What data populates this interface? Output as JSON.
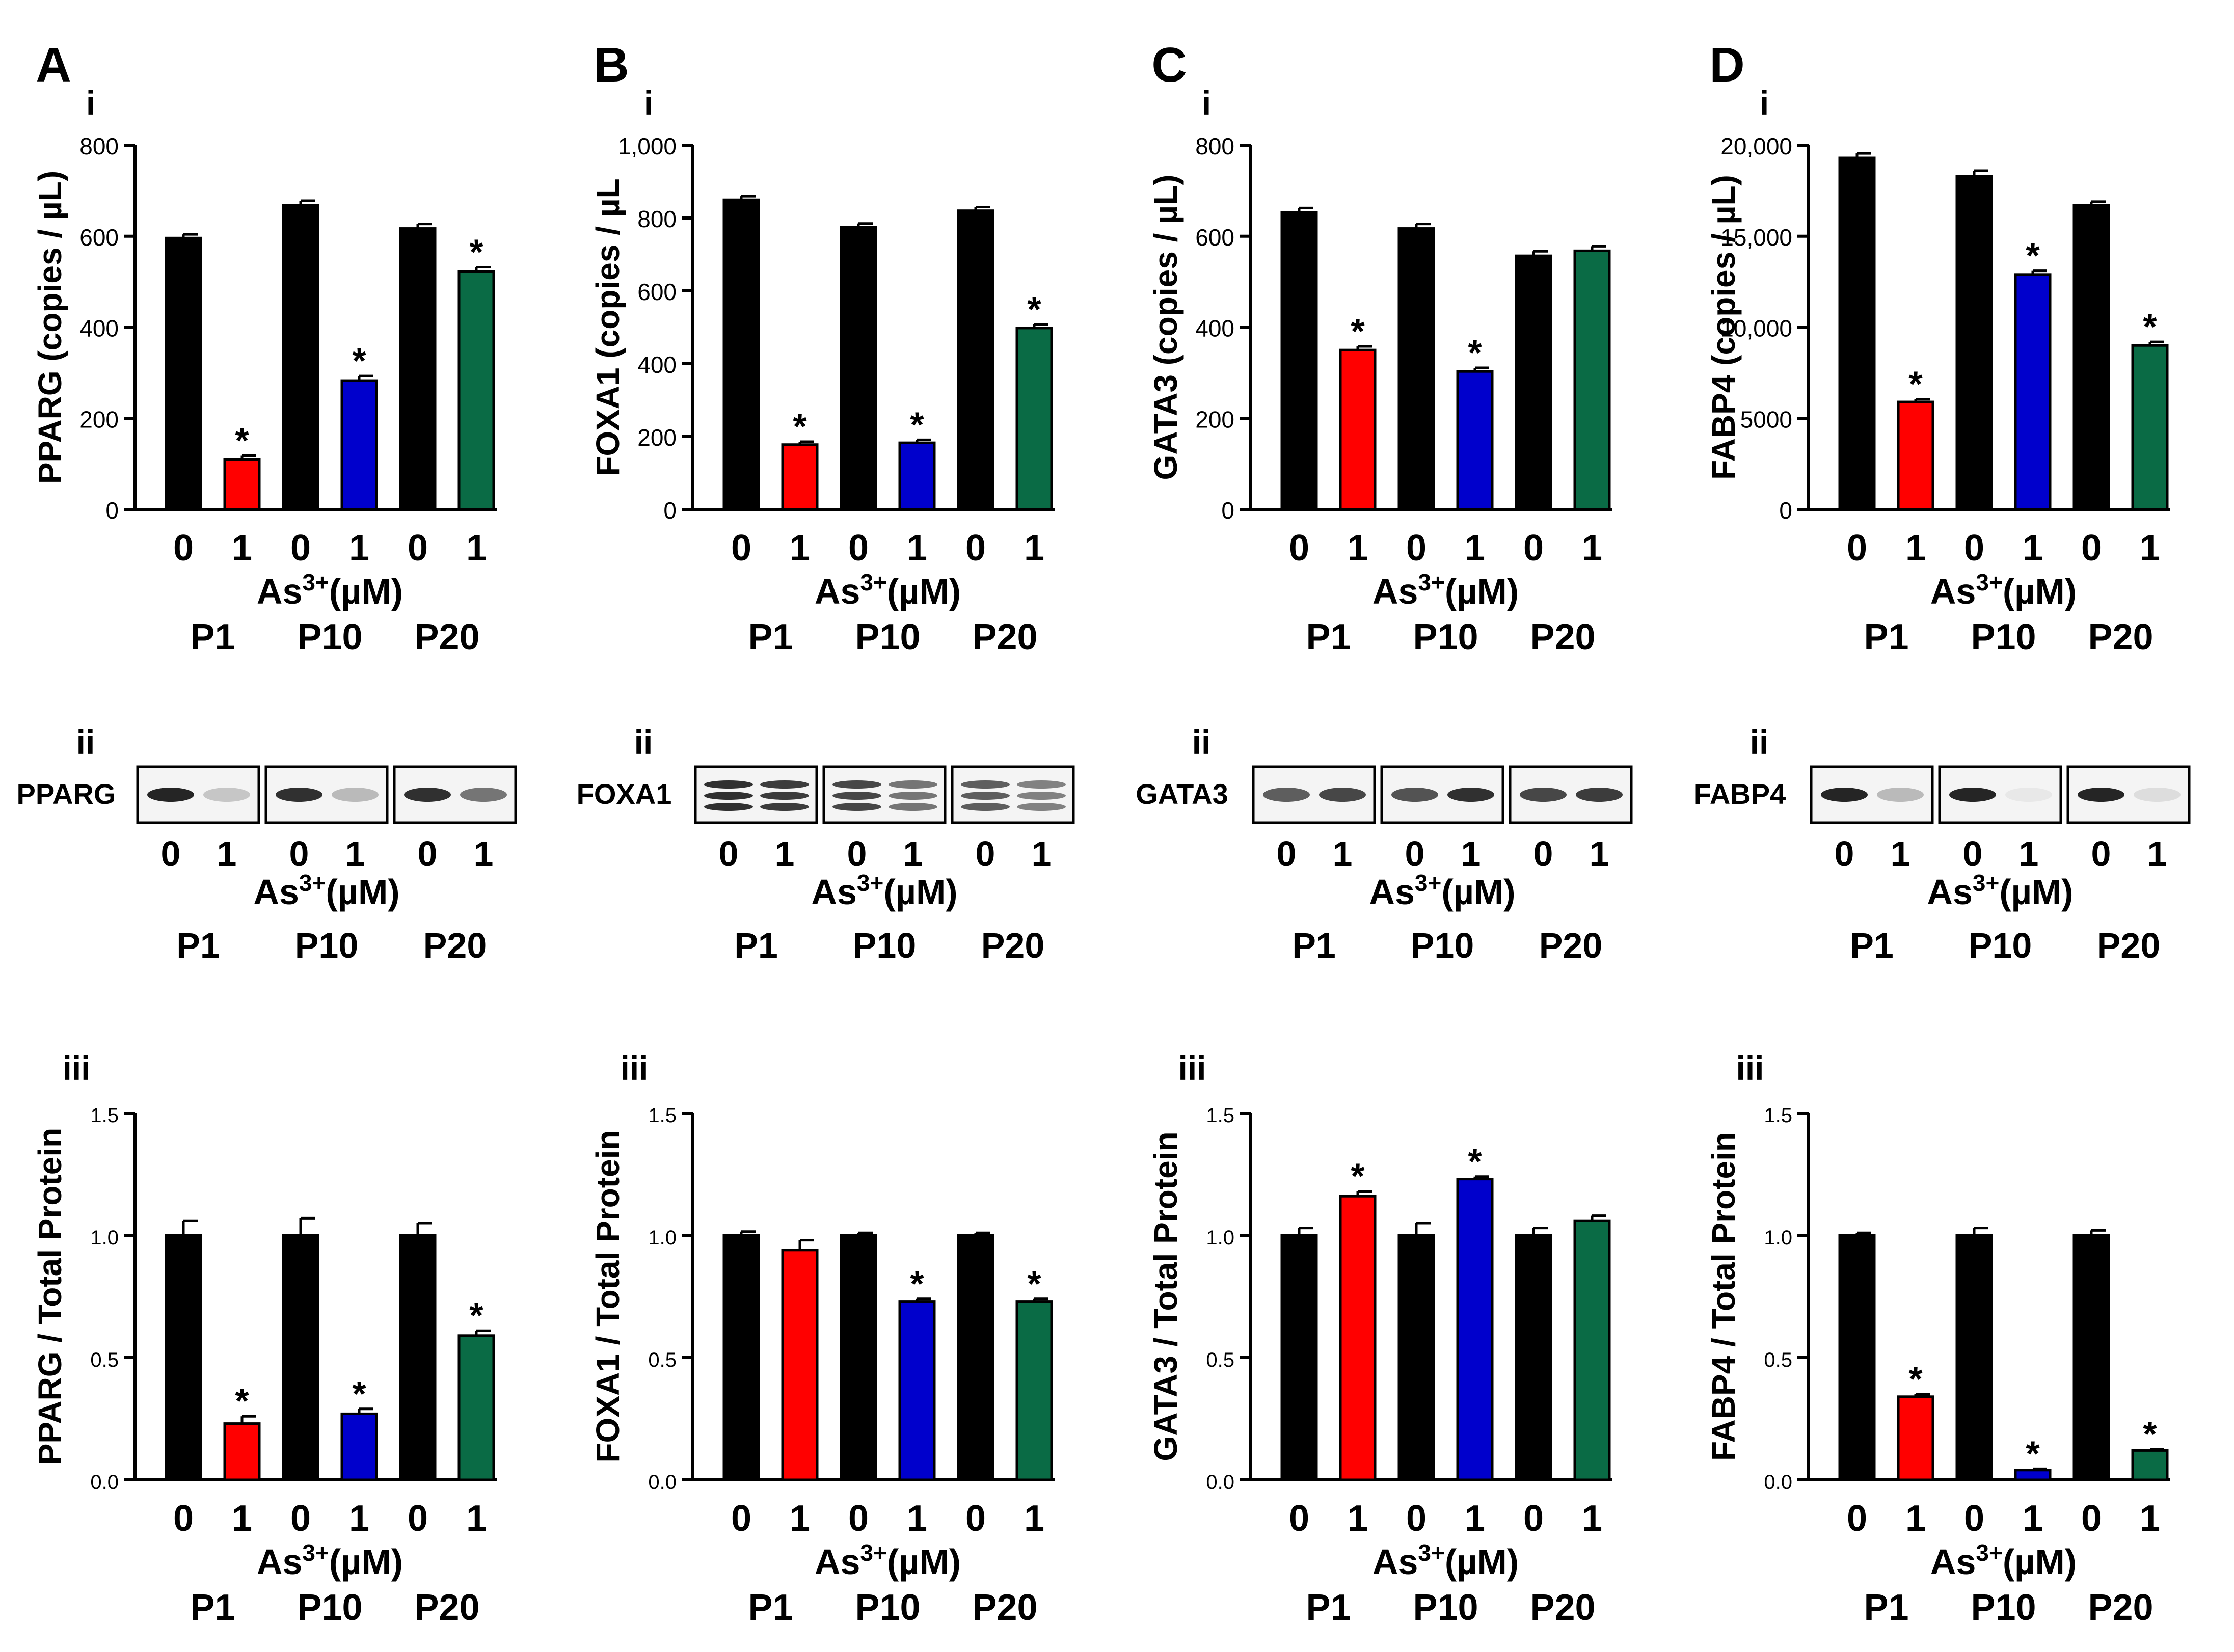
{
  "colors": {
    "control": "#000000",
    "P1": "#ff0000",
    "P10": "#0000cc",
    "P20": "#0a6b45",
    "axis": "#000000"
  },
  "panels": [
    {
      "letter": "A",
      "gene": "PPARG"
    },
    {
      "letter": "B",
      "gene": "FOXA1"
    },
    {
      "letter": "C",
      "gene": "GATA3"
    },
    {
      "letter": "D",
      "gene": "FABP4"
    }
  ],
  "subpanel_labels": {
    "i": "i",
    "ii": "ii",
    "iii": "iii"
  },
  "x_axis": {
    "doses": [
      "0",
      "1",
      "0",
      "1",
      "0",
      "1"
    ],
    "label_prefix": "As",
    "label_superscript": "3+",
    "label_suffix": "(µM)",
    "passages": [
      "P1",
      "P10",
      "P20"
    ]
  },
  "blots": [
    {
      "label": "PPARG",
      "band_intensity": [
        0.95,
        0.25,
        0.9,
        0.3,
        0.9,
        0.6
      ]
    },
    {
      "label": "FOXA1",
      "band_intensity": [
        0.9,
        0.85,
        0.8,
        0.6,
        0.7,
        0.55
      ]
    },
    {
      "label": "GATA3",
      "band_intensity": [
        0.7,
        0.8,
        0.75,
        0.9,
        0.8,
        0.85
      ]
    },
    {
      "label": "FABP4",
      "band_intensity": [
        0.95,
        0.3,
        0.95,
        0.1,
        0.95,
        0.15
      ]
    }
  ],
  "chart_data": [
    {
      "id": "A-i",
      "type": "bar",
      "panel": "A",
      "subpanel": "i",
      "categories": [
        "0",
        "1",
        "0",
        "1",
        "0",
        "1"
      ],
      "groups": [
        "P1",
        "P10",
        "P20"
      ],
      "ylabel": "PPARG (copies / µL)",
      "xlabel": "As3+(µM)",
      "ylim": [
        0,
        800
      ],
      "yticks": [
        0,
        200,
        400,
        600,
        800
      ],
      "ytick_labels": [
        "0",
        "200",
        "400",
        "600",
        "800"
      ],
      "values": [
        596,
        110,
        668,
        283,
        617,
        522
      ],
      "errors": [
        8,
        8,
        10,
        10,
        10,
        10
      ],
      "significant": [
        false,
        true,
        false,
        true,
        false,
        true
      ]
    },
    {
      "id": "B-i",
      "type": "bar",
      "panel": "B",
      "subpanel": "i",
      "categories": [
        "0",
        "1",
        "0",
        "1",
        "0",
        "1"
      ],
      "groups": [
        "P1",
        "P10",
        "P20"
      ],
      "ylabel": "FOXA1 (copies / µL",
      "xlabel": "As3+(µM)",
      "ylim": [
        0,
        1000
      ],
      "yticks": [
        0,
        200,
        400,
        600,
        800,
        1000
      ],
      "ytick_labels": [
        "0",
        "200",
        "400",
        "600",
        "800",
        "1,000"
      ],
      "values": [
        850,
        178,
        775,
        183,
        820,
        498
      ],
      "errors": [
        10,
        8,
        10,
        8,
        10,
        10
      ],
      "significant": [
        false,
        true,
        false,
        true,
        false,
        true
      ]
    },
    {
      "id": "C-i",
      "type": "bar",
      "panel": "C",
      "subpanel": "i",
      "categories": [
        "0",
        "1",
        "0",
        "1",
        "0",
        "1"
      ],
      "groups": [
        "P1",
        "P10",
        "P20"
      ],
      "ylabel": "GATA3 (copies / µL)",
      "xlabel": "As3+(µM)",
      "ylim": [
        0,
        800
      ],
      "yticks": [
        0,
        200,
        400,
        600,
        800
      ],
      "ytick_labels": [
        "0",
        "200",
        "400",
        "600",
        "800"
      ],
      "values": [
        652,
        350,
        617,
        303,
        557,
        568
      ],
      "errors": [
        10,
        8,
        10,
        8,
        10,
        10
      ],
      "significant": [
        false,
        true,
        false,
        true,
        false,
        false
      ]
    },
    {
      "id": "D-i",
      "type": "bar",
      "panel": "D",
      "subpanel": "i",
      "categories": [
        "0",
        "1",
        "0",
        "1",
        "0",
        "1"
      ],
      "groups": [
        "P1",
        "P10",
        "P20"
      ],
      "ylabel": "FABP4 (copies / µL)",
      "xlabel": "As3+(µM)",
      "ylim": [
        0,
        20000
      ],
      "yticks": [
        0,
        5000,
        10000,
        15000,
        20000
      ],
      "ytick_labels": [
        "0",
        "5000",
        "10,000",
        "15,000",
        "20,000"
      ],
      "values": [
        19300,
        5900,
        18300,
        12900,
        16700,
        9000
      ],
      "errors": [
        250,
        150,
        300,
        200,
        200,
        200
      ],
      "significant": [
        false,
        true,
        false,
        true,
        false,
        true
      ]
    },
    {
      "id": "A-iii",
      "type": "bar",
      "panel": "A",
      "subpanel": "iii",
      "categories": [
        "0",
        "1",
        "0",
        "1",
        "0",
        "1"
      ],
      "groups": [
        "P1",
        "P10",
        "P20"
      ],
      "ylabel": "PPARG / Total Protein",
      "xlabel": "As3+(µM)",
      "ylim": [
        0,
        1.5
      ],
      "yticks": [
        0,
        0.5,
        1.0,
        1.5
      ],
      "ytick_labels": [
        "0.0",
        "0.5",
        "1.0",
        "1.5"
      ],
      "values": [
        1.0,
        0.23,
        1.0,
        0.27,
        1.0,
        0.59
      ],
      "errors": [
        0.06,
        0.03,
        0.07,
        0.02,
        0.05,
        0.02
      ],
      "significant": [
        false,
        true,
        false,
        true,
        false,
        true
      ]
    },
    {
      "id": "B-iii",
      "type": "bar",
      "panel": "B",
      "subpanel": "iii",
      "categories": [
        "0",
        "1",
        "0",
        "1",
        "0",
        "1"
      ],
      "groups": [
        "P1",
        "P10",
        "P20"
      ],
      "ylabel": "FOXA1 / Total Protein",
      "xlabel": "As3+(µM)",
      "ylim": [
        0,
        1.5
      ],
      "yticks": [
        0,
        0.5,
        1.0,
        1.5
      ],
      "ytick_labels": [
        "0.0",
        "0.5",
        "1.0",
        "1.5"
      ],
      "values": [
        1.0,
        0.94,
        1.0,
        0.73,
        1.0,
        0.73
      ],
      "errors": [
        0.015,
        0.04,
        0.01,
        0.01,
        0.01,
        0.01
      ],
      "significant": [
        false,
        false,
        false,
        true,
        false,
        true
      ]
    },
    {
      "id": "C-iii",
      "type": "bar",
      "panel": "C",
      "subpanel": "iii",
      "categories": [
        "0",
        "1",
        "0",
        "1",
        "0",
        "1"
      ],
      "groups": [
        "P1",
        "P10",
        "P20"
      ],
      "ylabel": "GATA3 / Total Protein",
      "xlabel": "As3+(µM)",
      "ylim": [
        0,
        1.5
      ],
      "yticks": [
        0,
        0.5,
        1.0,
        1.5
      ],
      "ytick_labels": [
        "0.0",
        "0.5",
        "1.0",
        "1.5"
      ],
      "values": [
        1.0,
        1.16,
        1.0,
        1.23,
        1.0,
        1.06
      ],
      "errors": [
        0.03,
        0.02,
        0.05,
        0.01,
        0.03,
        0.02
      ],
      "significant": [
        false,
        true,
        false,
        true,
        false,
        false
      ]
    },
    {
      "id": "D-iii",
      "type": "bar",
      "panel": "D",
      "subpanel": "iii",
      "categories": [
        "0",
        "1",
        "0",
        "1",
        "0",
        "1"
      ],
      "groups": [
        "P1",
        "P10",
        "P20"
      ],
      "ylabel": "FABP4 / Total Protein",
      "xlabel": "As3+(µM)",
      "ylim": [
        0,
        1.5
      ],
      "yticks": [
        0,
        0.5,
        1.0,
        1.5
      ],
      "ytick_labels": [
        "0.0",
        "0.5",
        "1.0",
        "1.5"
      ],
      "values": [
        1.0,
        0.34,
        1.0,
        0.04,
        1.0,
        0.12
      ],
      "errors": [
        0.01,
        0.01,
        0.03,
        0.005,
        0.02,
        0.005
      ],
      "significant": [
        false,
        true,
        false,
        true,
        false,
        true
      ]
    }
  ]
}
